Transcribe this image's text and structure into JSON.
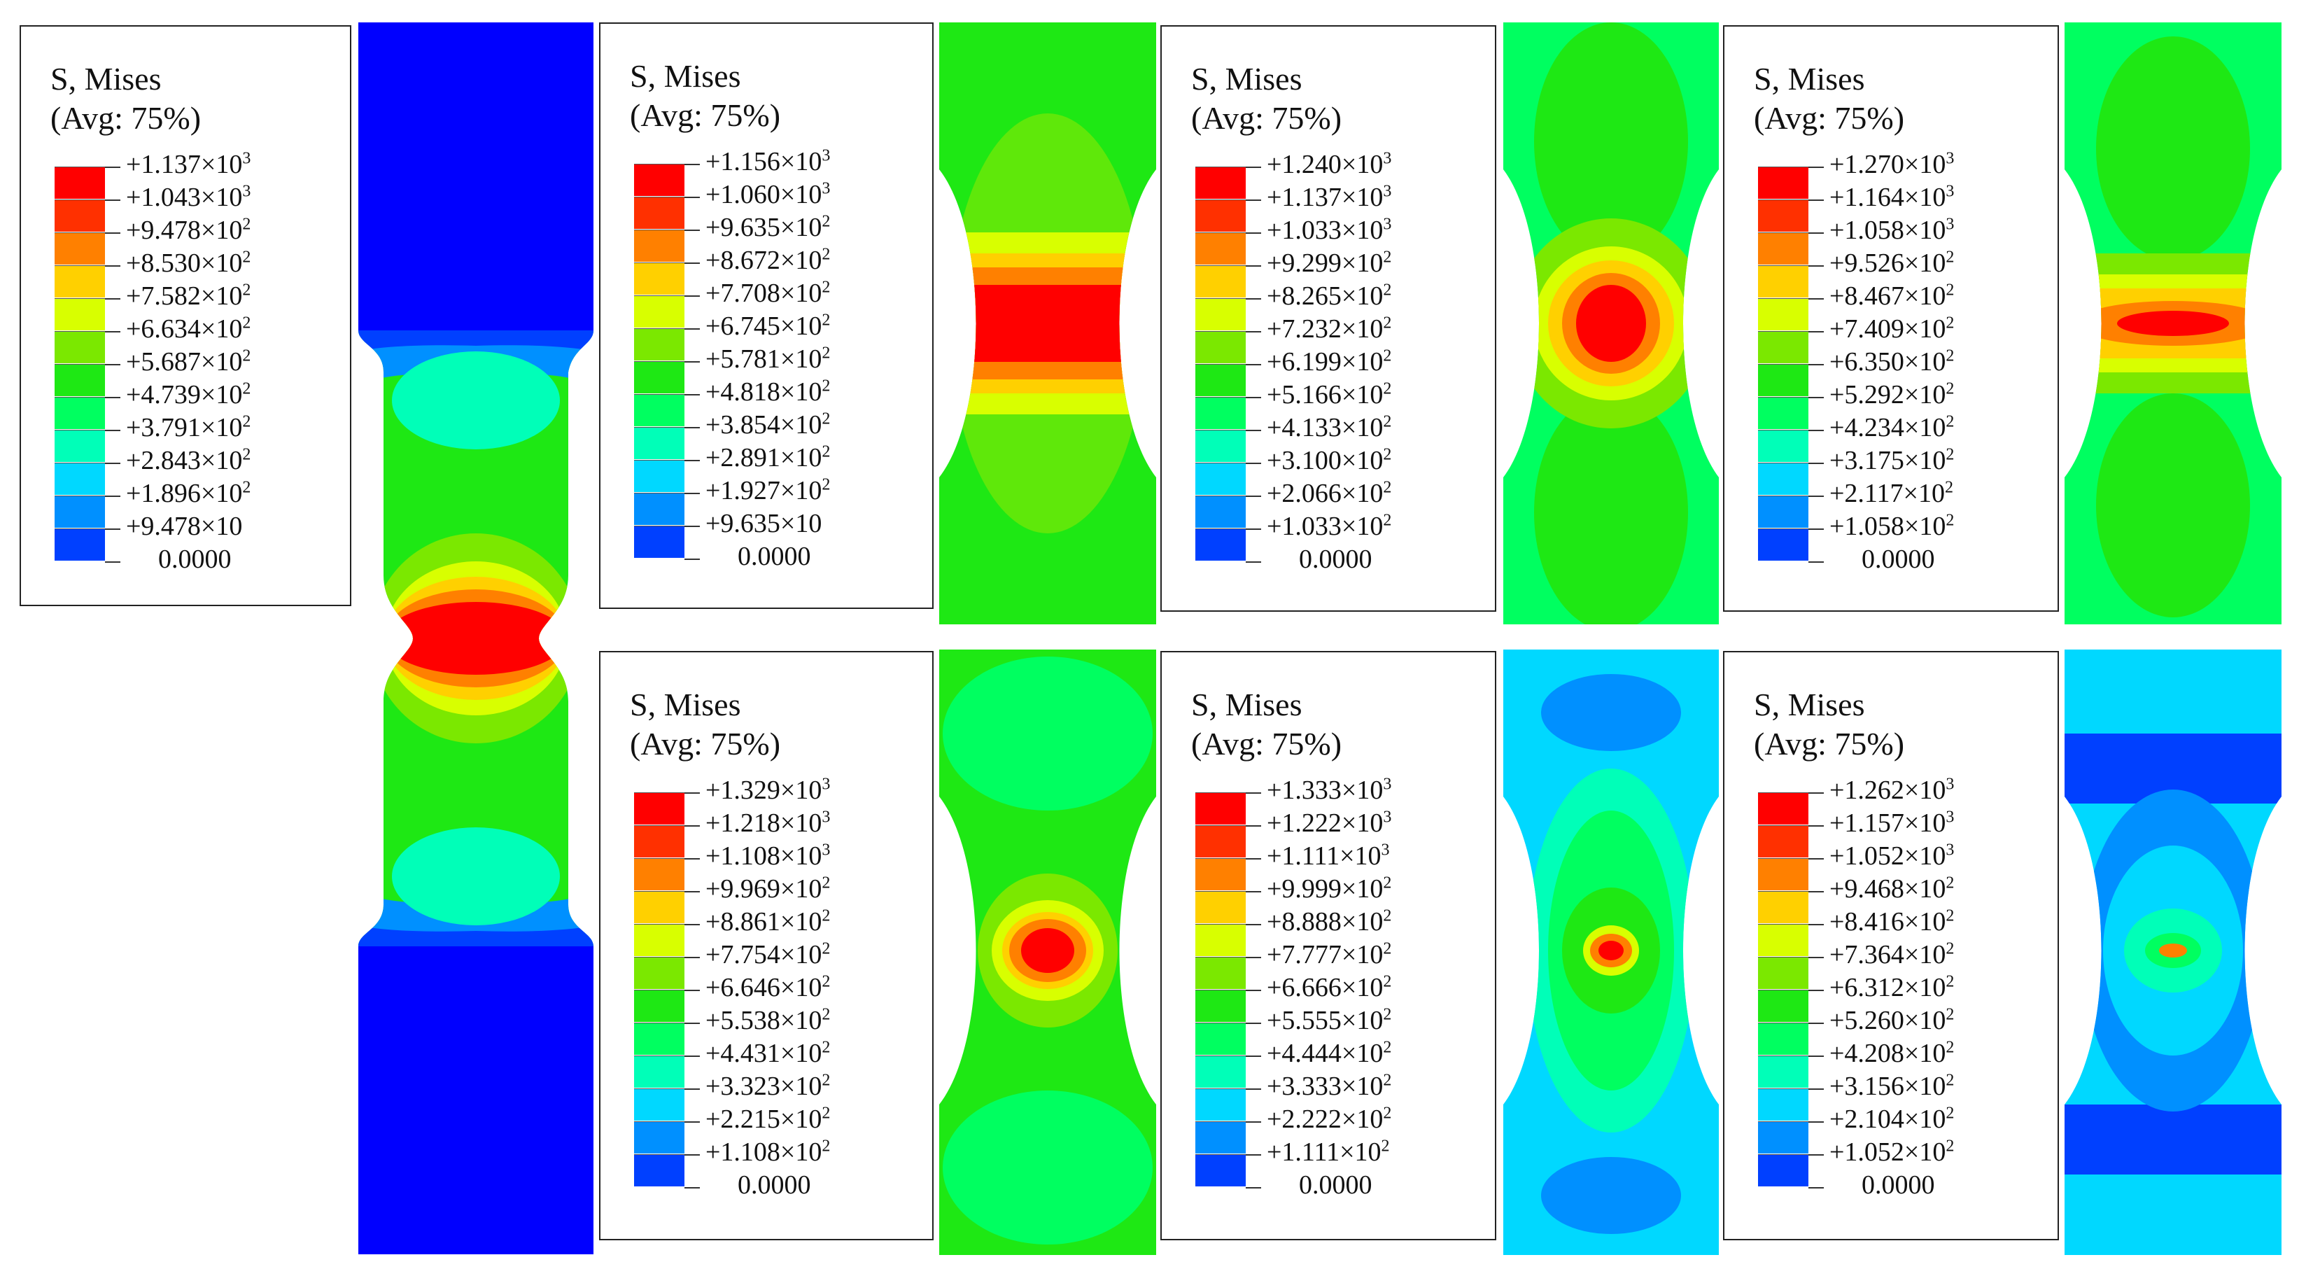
{
  "colors": [
    "#0000ff",
    "#0040ff",
    "#0090ff",
    "#00d8ff",
    "#00ffb8",
    "#00ff60",
    "#1ee814",
    "#7be800",
    "#d8ff00",
    "#ffd000",
    "#ff8000",
    "#ff3000",
    "#ff0000"
  ],
  "legends": [
    {
      "title": "S, Mises",
      "subtitle": "(Avg: 75%)",
      "values": [
        {
          "m": "+1.137×10",
          "e": "3"
        },
        {
          "m": "+1.043×10",
          "e": "3"
        },
        {
          "m": "+9.478×10",
          "e": "2"
        },
        {
          "m": "+8.530×10",
          "e": "2"
        },
        {
          "m": "+7.582×10",
          "e": "2"
        },
        {
          "m": "+6.634×10",
          "e": "2"
        },
        {
          "m": "+5.687×10",
          "e": "2"
        },
        {
          "m": "+4.739×10",
          "e": "2"
        },
        {
          "m": "+3.791×10",
          "e": "2"
        },
        {
          "m": "+2.843×10",
          "e": "2"
        },
        {
          "m": "+1.896×10",
          "e": "2"
        },
        {
          "m": "+9.478×10",
          "e": ""
        },
        {
          "m": "0.0000",
          "e": ""
        }
      ]
    },
    {
      "title": "S, Mises",
      "subtitle": "(Avg: 75%)",
      "values": [
        {
          "m": "+1.156×10",
          "e": "3"
        },
        {
          "m": "+1.060×10",
          "e": "3"
        },
        {
          "m": "+9.635×10",
          "e": "2"
        },
        {
          "m": "+8.672×10",
          "e": "2"
        },
        {
          "m": "+7.708×10",
          "e": "2"
        },
        {
          "m": "+6.745×10",
          "e": "2"
        },
        {
          "m": "+5.781×10",
          "e": "2"
        },
        {
          "m": "+4.818×10",
          "e": "2"
        },
        {
          "m": "+3.854×10",
          "e": "2"
        },
        {
          "m": "+2.891×10",
          "e": "2"
        },
        {
          "m": "+1.927×10",
          "e": "2"
        },
        {
          "m": "+9.635×10",
          "e": ""
        },
        {
          "m": "0.0000",
          "e": ""
        }
      ]
    },
    {
      "title": "S, Mises",
      "subtitle": "(Avg: 75%)",
      "values": [
        {
          "m": "+1.240×10",
          "e": "3"
        },
        {
          "m": "+1.137×10",
          "e": "3"
        },
        {
          "m": "+1.033×10",
          "e": "3"
        },
        {
          "m": "+9.299×10",
          "e": "2"
        },
        {
          "m": "+8.265×10",
          "e": "2"
        },
        {
          "m": "+7.232×10",
          "e": "2"
        },
        {
          "m": "+6.199×10",
          "e": "2"
        },
        {
          "m": "+5.166×10",
          "e": "2"
        },
        {
          "m": "+4.133×10",
          "e": "2"
        },
        {
          "m": "+3.100×10",
          "e": "2"
        },
        {
          "m": "+2.066×10",
          "e": "2"
        },
        {
          "m": "+1.033×10",
          "e": "2"
        },
        {
          "m": "0.0000",
          "e": ""
        }
      ]
    },
    {
      "title": "S, Mises",
      "subtitle": "(Avg: 75%)",
      "values": [
        {
          "m": "+1.270×10",
          "e": "3"
        },
        {
          "m": "+1.164×10",
          "e": "3"
        },
        {
          "m": "+1.058×10",
          "e": "3"
        },
        {
          "m": "+9.526×10",
          "e": "2"
        },
        {
          "m": "+8.467×10",
          "e": "2"
        },
        {
          "m": "+7.409×10",
          "e": "2"
        },
        {
          "m": "+6.350×10",
          "e": "2"
        },
        {
          "m": "+5.292×10",
          "e": "2"
        },
        {
          "m": "+4.234×10",
          "e": "2"
        },
        {
          "m": "+3.175×10",
          "e": "2"
        },
        {
          "m": "+2.117×10",
          "e": "2"
        },
        {
          "m": "+1.058×10",
          "e": "2"
        },
        {
          "m": "0.0000",
          "e": ""
        }
      ]
    },
    {
      "title": "S, Mises",
      "subtitle": "(Avg: 75%)",
      "values": [
        {
          "m": "+1.329×10",
          "e": "3"
        },
        {
          "m": "+1.218×10",
          "e": "3"
        },
        {
          "m": "+1.108×10",
          "e": "3"
        },
        {
          "m": "+9.969×10",
          "e": "2"
        },
        {
          "m": "+8.861×10",
          "e": "2"
        },
        {
          "m": "+7.754×10",
          "e": "2"
        },
        {
          "m": "+6.646×10",
          "e": "2"
        },
        {
          "m": "+5.538×10",
          "e": "2"
        },
        {
          "m": "+4.431×10",
          "e": "2"
        },
        {
          "m": "+3.323×10",
          "e": "2"
        },
        {
          "m": "+2.215×10",
          "e": "2"
        },
        {
          "m": "+1.108×10",
          "e": "2"
        },
        {
          "m": "0.0000",
          "e": ""
        }
      ]
    },
    {
      "title": "S, Mises",
      "subtitle": "(Avg: 75%)",
      "values": [
        {
          "m": "+1.333×10",
          "e": "3"
        },
        {
          "m": "+1.222×10",
          "e": "3"
        },
        {
          "m": "+1.111×10",
          "e": "3"
        },
        {
          "m": "+9.999×10",
          "e": "2"
        },
        {
          "m": "+8.888×10",
          "e": "2"
        },
        {
          "m": "+7.777×10",
          "e": "2"
        },
        {
          "m": "+6.666×10",
          "e": "2"
        },
        {
          "m": "+5.555×10",
          "e": "2"
        },
        {
          "m": "+4.444×10",
          "e": "2"
        },
        {
          "m": "+3.333×10",
          "e": "2"
        },
        {
          "m": "+2.222×10",
          "e": "2"
        },
        {
          "m": "+1.111×10",
          "e": "2"
        },
        {
          "m": "0.0000",
          "e": ""
        }
      ]
    },
    {
      "title": "S, Mises",
      "subtitle": "(Avg: 75%)",
      "values": [
        {
          "m": "+1.262×10",
          "e": "3"
        },
        {
          "m": "+1.157×10",
          "e": "3"
        },
        {
          "m": "+1.052×10",
          "e": "3"
        },
        {
          "m": "+9.468×10",
          "e": "2"
        },
        {
          "m": "+8.416×10",
          "e": "2"
        },
        {
          "m": "+7.364×10",
          "e": "2"
        },
        {
          "m": "+6.312×10",
          "e": "2"
        },
        {
          "m": "+5.260×10",
          "e": "2"
        },
        {
          "m": "+4.208×10",
          "e": "2"
        },
        {
          "m": "+3.156×10",
          "e": "2"
        },
        {
          "m": "+2.104×10",
          "e": "2"
        },
        {
          "m": "+1.052×10",
          "e": "2"
        },
        {
          "m": "0.0000",
          "e": ""
        }
      ]
    }
  ]
}
